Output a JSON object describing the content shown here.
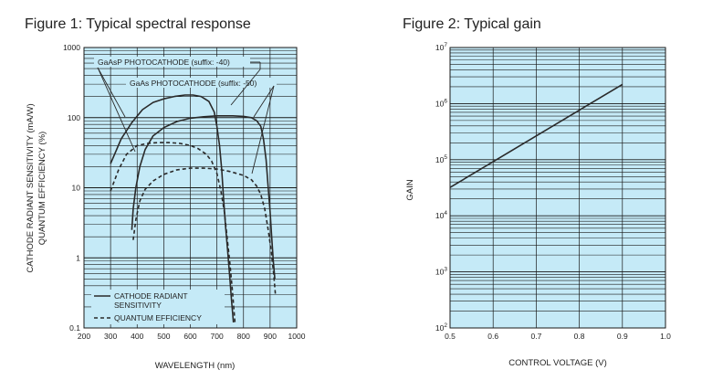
{
  "figures": {
    "fig1_title": "Figure 1: Typical spectral response",
    "fig2_title": "Figure 2: Typical gain"
  },
  "colors": {
    "plot_bg": "#c5eaf7",
    "grid": "#1a1a1a",
    "line": "#2a2a2a"
  },
  "chart_data": [
    {
      "type": "line",
      "title": "Figure 1: Typical spectral response",
      "xlabel": "WAVELENGTH (nm)",
      "ylabel_line1": "CATHODE RADIANT SENSITIVITY (mA/W)",
      "ylabel_line2": "QUANTUM EFFICIENCY (%)",
      "xlim": [
        200,
        1000
      ],
      "ylim": [
        0.1,
        1000
      ],
      "yscale": "log",
      "x_ticks": [
        200,
        300,
        400,
        500,
        600,
        700,
        800,
        900,
        1000
      ],
      "x_tick_labels": [
        "200",
        "300",
        "400",
        "500",
        "600",
        "700",
        "800",
        "900",
        "1000"
      ],
      "y_ticks": [
        0.1,
        1,
        10,
        100,
        1000
      ],
      "y_tick_labels": [
        "0.1",
        "1",
        "10",
        "100",
        "1000"
      ],
      "annotations": [
        {
          "text": "GaAsP PHOTOCATHODE (suffix: -40)"
        },
        {
          "text": "GaAs PHOTOCATHODE (suffix: -50)"
        }
      ],
      "legend": {
        "position": "bottom-left",
        "entries": [
          {
            "label_line1": "CATHODE RADIANT",
            "label_line2": "SENSITIVITY",
            "style": "solid"
          },
          {
            "label": "QUANTUM EFFICIENCY",
            "style": "dashed"
          }
        ]
      },
      "series": [
        {
          "name": "GaAsP cathode radiant sensitivity",
          "style": "solid",
          "x": [
            300,
            340,
            380,
            420,
            460,
            500,
            540,
            580,
            610,
            640,
            670,
            690,
            700,
            710,
            718,
            725,
            732,
            740,
            748,
            755,
            762
          ],
          "y": [
            22,
            50,
            85,
            130,
            165,
            185,
            200,
            210,
            210,
            200,
            170,
            120,
            75,
            40,
            18,
            7,
            3,
            1.3,
            0.55,
            0.25,
            0.12
          ]
        },
        {
          "name": "GaAsP quantum efficiency",
          "style": "dashed",
          "x": [
            300,
            330,
            360,
            400,
            440,
            480,
            520,
            560,
            600,
            630,
            660,
            680,
            700,
            715,
            728,
            738,
            748,
            758,
            768
          ],
          "y": [
            9,
            18,
            30,
            40,
            43,
            44,
            44,
            43,
            40,
            36,
            30,
            24,
            16,
            9,
            4.5,
            2,
            0.9,
            0.35,
            0.12
          ]
        },
        {
          "name": "GaAs cathode radiant sensitivity",
          "style": "solid",
          "x": [
            380,
            385,
            395,
            410,
            430,
            460,
            500,
            550,
            600,
            650,
            700,
            760,
            800,
            830,
            850,
            865,
            875,
            885,
            893,
            900,
            906,
            912,
            918
          ],
          "y": [
            2.5,
            5,
            10,
            20,
            35,
            55,
            72,
            88,
            98,
            103,
            106,
            106,
            104,
            100,
            90,
            75,
            50,
            25,
            10,
            4.5,
            2,
            0.9,
            0.5
          ]
        },
        {
          "name": "GaAs quantum efficiency",
          "style": "dashed",
          "x": [
            385,
            395,
            410,
            430,
            460,
            500,
            550,
            600,
            650,
            700,
            750,
            800,
            830,
            850,
            865,
            880,
            893,
            905,
            914,
            920
          ],
          "y": [
            1.8,
            3.5,
            6.5,
            9.5,
            12.5,
            15.5,
            18,
            19,
            19,
            18.5,
            17,
            15,
            13,
            10.5,
            8,
            5,
            2.5,
            1.2,
            0.55,
            0.3
          ]
        }
      ]
    },
    {
      "type": "line",
      "title": "Figure 2: Typical gain",
      "xlabel": "CONTROL VOLTAGE (V)",
      "ylabel": "GAIN",
      "xlim": [
        0.5,
        1.0
      ],
      "ylim": [
        100,
        10000000
      ],
      "yscale": "log",
      "x_ticks": [
        0.5,
        0.6,
        0.7,
        0.8,
        0.9,
        1.0
      ],
      "x_tick_labels": [
        "0.5",
        "0.6",
        "0.7",
        "0.8",
        "0.9",
        "1.0"
      ],
      "y_ticks": [
        100,
        1000,
        10000,
        100000,
        1000000,
        10000000
      ],
      "y_tick_labels": [
        {
          "base": "10",
          "exp": "2"
        },
        {
          "base": "10",
          "exp": "3"
        },
        {
          "base": "10",
          "exp": "4"
        },
        {
          "base": "10",
          "exp": "5"
        },
        {
          "base": "10",
          "exp": "6"
        },
        {
          "base": "10",
          "exp": "7"
        }
      ],
      "series": [
        {
          "name": "Gain",
          "style": "solid",
          "x": [
            0.5,
            0.9
          ],
          "y": [
            32000,
            2200000
          ]
        }
      ]
    }
  ]
}
